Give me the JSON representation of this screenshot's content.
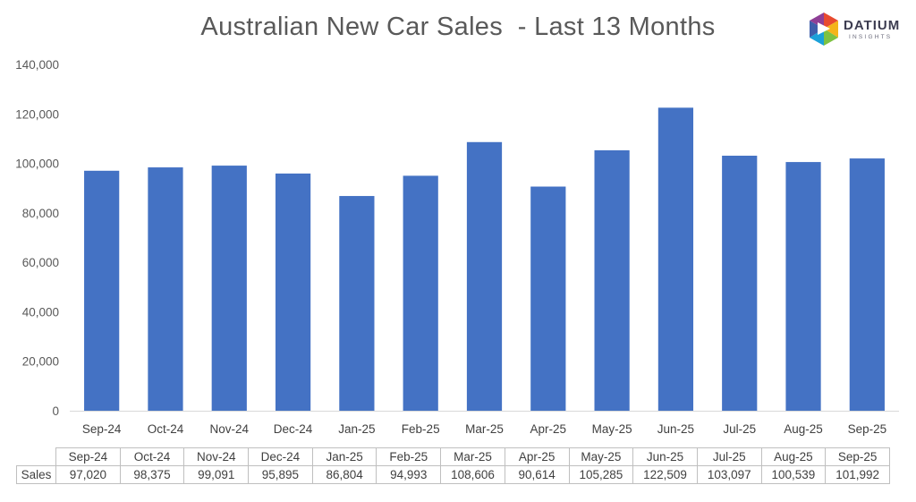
{
  "chart_data": {
    "type": "bar",
    "title": "Australian New Car Sales  - Last 13 Months",
    "categories": [
      "Sep-24",
      "Oct-24",
      "Nov-24",
      "Dec-24",
      "Jan-25",
      "Feb-25",
      "Mar-25",
      "Apr-25",
      "May-25",
      "Jun-25",
      "Jul-25",
      "Aug-25",
      "Sep-25"
    ],
    "series": [
      {
        "name": "Sales",
        "values": [
          97020,
          98375,
          99091,
          95895,
          86804,
          94993,
          108606,
          90614,
          105285,
          122509,
          103097,
          100539,
          101992
        ]
      }
    ],
    "value_labels": [
      "97,020",
      "98,375",
      "99,091",
      "95,895",
      "86,804",
      "94,993",
      "108,606",
      "90,614",
      "105,285",
      "122,509",
      "103,097",
      "100,539",
      "101,992"
    ],
    "ylim": [
      0,
      140000
    ],
    "yticks": [
      "0",
      "20,000",
      "40,000",
      "60,000",
      "80,000",
      "100,000",
      "120,000",
      "140,000"
    ],
    "grid": false,
    "legend": "none",
    "bar_color": "#4472C4",
    "data_table": true
  },
  "logo": {
    "text": "DATIUM",
    "subtext": "INSIGHTS"
  }
}
